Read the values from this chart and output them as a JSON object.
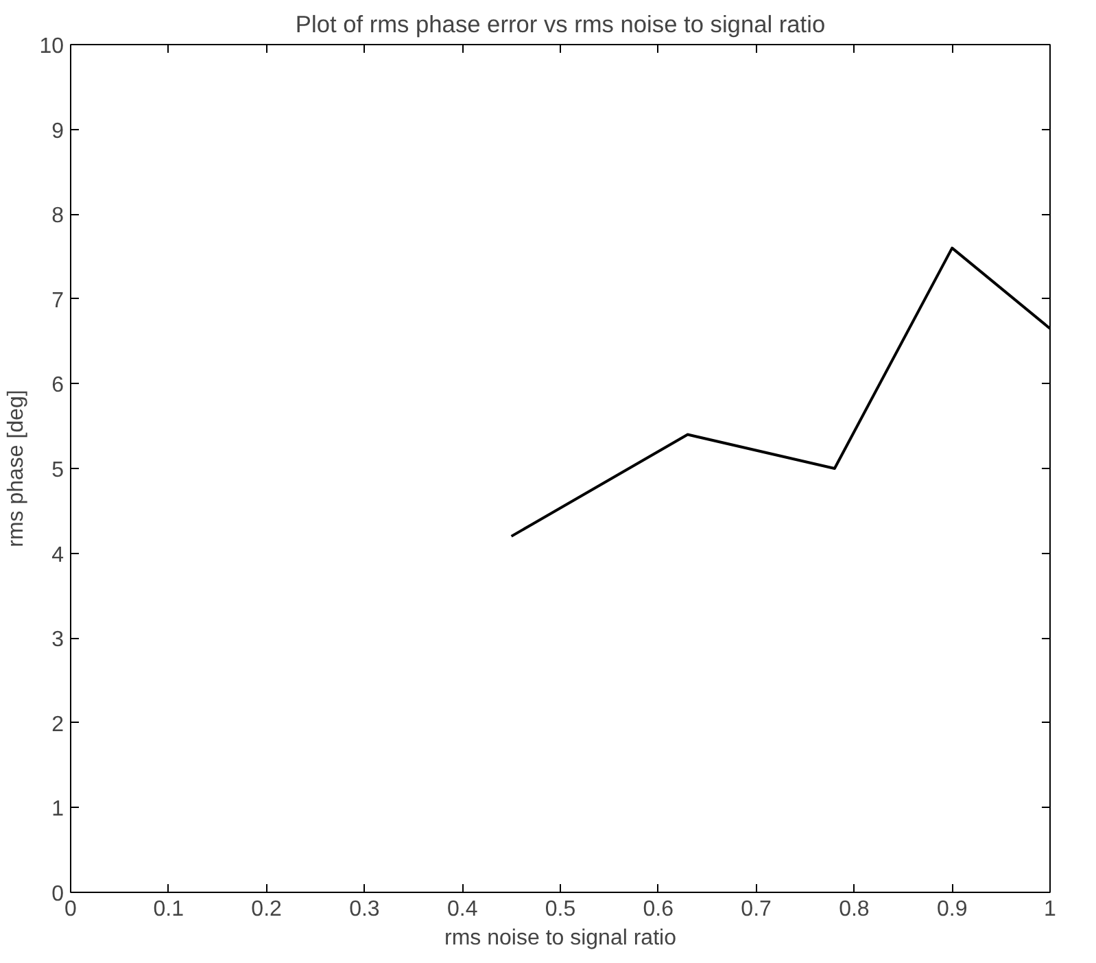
{
  "chart_data": {
    "type": "line",
    "title": "Plot of rms phase error vs rms noise to signal ratio",
    "xlabel": "rms noise to signal ratio",
    "ylabel": "rms phase [deg]",
    "x": [
      0.45,
      0.63,
      0.78,
      0.9,
      1.0
    ],
    "series": [
      {
        "color": "#000000",
        "values": [
          4.2,
          5.4,
          5.0,
          7.6,
          6.65
        ]
      }
    ],
    "xlim": [
      0,
      1
    ],
    "ylim": [
      0,
      10
    ],
    "xticks": [
      0,
      0.1,
      0.2,
      0.3,
      0.4,
      0.5,
      0.6,
      0.7,
      0.8,
      0.9,
      1
    ],
    "yticks": [
      0,
      1,
      2,
      3,
      4,
      5,
      6,
      7,
      8,
      9,
      10
    ],
    "grid": false
  }
}
